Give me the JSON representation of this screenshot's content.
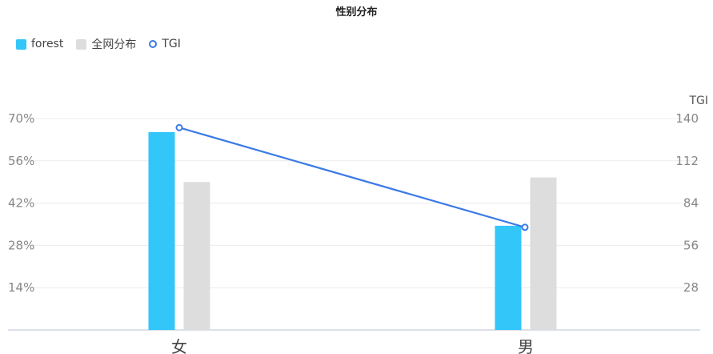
{
  "chart_data": {
    "type": "bar",
    "title": "性别分布",
    "categories": [
      "女",
      "男"
    ],
    "series": [
      {
        "name": "forest",
        "type": "bar",
        "axis": "left",
        "values": [
          65.5,
          34.5
        ],
        "color": "#33c6f8"
      },
      {
        "name": "全网分布",
        "type": "bar",
        "axis": "left",
        "values": [
          49,
          50.5
        ],
        "color": "#dddddd"
      },
      {
        "name": "TGI",
        "type": "line",
        "axis": "right",
        "values": [
          134,
          68
        ],
        "color": "#3b7ae6"
      }
    ],
    "y_left": {
      "min": 0,
      "max": 70,
      "ticks": [
        "70%",
        "56%",
        "42%",
        "28%",
        "14%"
      ],
      "tick_values": [
        70,
        56,
        42,
        28,
        14
      ]
    },
    "y_right": {
      "label": "TGI",
      "min": 0,
      "max": 140,
      "ticks": [
        "140",
        "112",
        "84",
        "56",
        "28"
      ],
      "tick_values": [
        140,
        112,
        84,
        56,
        28
      ]
    },
    "grid": true,
    "legend": "top-left"
  }
}
